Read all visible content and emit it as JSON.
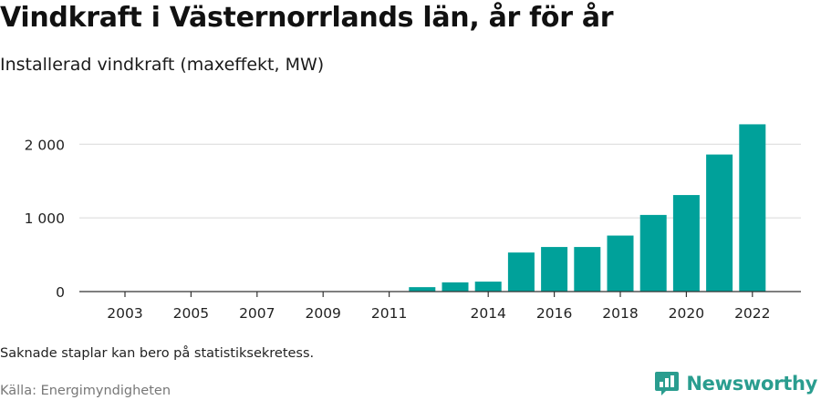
{
  "title": "Vindkraft i Västernorrlands län, år för år",
  "subtitle": "Installerad vindkraft (maxeffekt, MW)",
  "note": "Saknade staplar kan bero på statistiksekretess.",
  "source": "Källa: Energimyndigheten",
  "brand": {
    "name": "Newsworthy",
    "icon": "newsworthy-logo-icon",
    "color": "#2a9d8f"
  },
  "colors": {
    "bar": "#00a19a",
    "grid": "#d9d9d9",
    "axis": "#333333"
  },
  "chart_data": {
    "type": "bar",
    "title": "Vindkraft i Västernorrlands län, år för år",
    "subtitle": "Installerad vindkraft (maxeffekt, MW)",
    "x": [
      2003,
      2004,
      2005,
      2006,
      2007,
      2008,
      2009,
      2010,
      2011,
      2012,
      2013,
      2014,
      2015,
      2016,
      2017,
      2018,
      2019,
      2020,
      2021,
      2022
    ],
    "values": [
      0,
      0,
      0,
      0,
      0,
      0,
      0,
      0,
      0,
      60,
      125,
      135,
      530,
      605,
      605,
      760,
      1040,
      1310,
      1860,
      2270
    ],
    "x_tick_labels": [
      "2003",
      "2005",
      "2007",
      "2009",
      "2011",
      "2014",
      "2016",
      "2018",
      "2020",
      "2022"
    ],
    "y_tick_values": [
      0,
      1000,
      2000
    ],
    "y_tick_labels": [
      "0",
      "1 000",
      "2 000"
    ],
    "ylim": [
      0,
      2300
    ],
    "grid": true
  }
}
